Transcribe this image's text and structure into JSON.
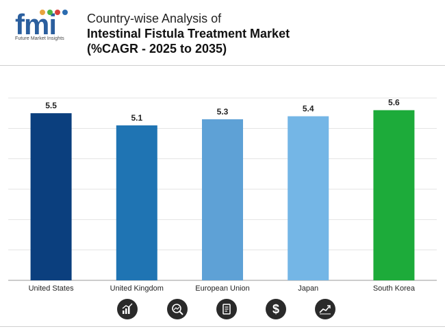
{
  "header": {
    "logo_text": "fmi",
    "logo_subtitle": "Future Market Insights",
    "title_line1": "Country-wise Analysis of",
    "title_line2": "Intestinal Fistula Treatment Market",
    "title_line3": "(%CAGR - 2025 to 2035)"
  },
  "chart_data": {
    "type": "bar",
    "categories": [
      "United States",
      "United Kingdom",
      "European Union",
      "Japan",
      "South Korea"
    ],
    "values": [
      5.5,
      5.1,
      5.3,
      5.4,
      5.6
    ],
    "value_labels": [
      "5.5",
      "5.1",
      "5.3",
      "5.4",
      "5.6"
    ],
    "bar_colors": [
      "#0b3f7e",
      "#1f74b3",
      "#5ea1d6",
      "#74b6e6",
      "#1dab3a"
    ],
    "title": "",
    "xlabel": "",
    "ylabel": "",
    "ylim": [
      0,
      6
    ],
    "grid": true,
    "legend": "none"
  },
  "footer_icons": [
    "growth-chart-icon",
    "magnifier-chart-icon",
    "report-icon",
    "dollar-icon",
    "trend-line-icon"
  ]
}
